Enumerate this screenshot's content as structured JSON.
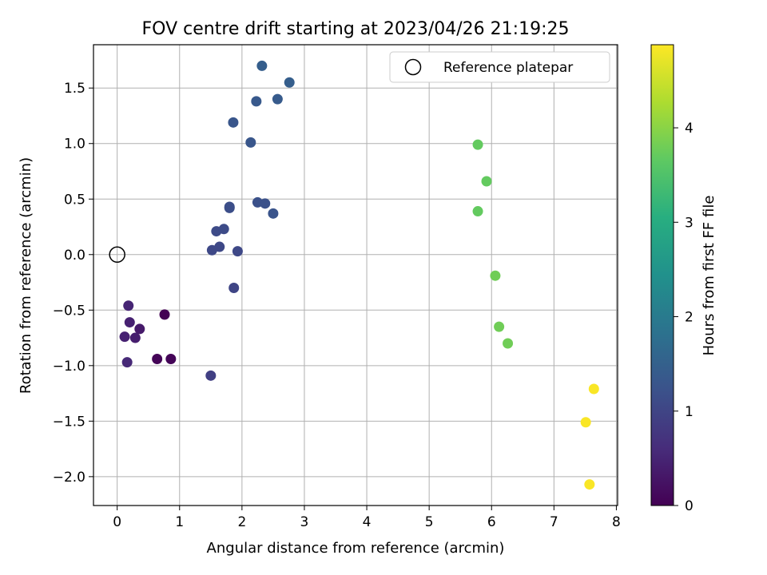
{
  "chart_data": {
    "type": "scatter",
    "title": "FOV centre drift starting at 2023/04/26 21:19:25",
    "xlabel": "Angular distance from reference (arcmin)",
    "ylabel": "Rotation from reference (arcmin)",
    "xlim": [
      -0.38,
      8.02
    ],
    "ylim": [
      -2.26,
      1.89
    ],
    "xticks": [
      0,
      1,
      2,
      3,
      4,
      5,
      6,
      7,
      8
    ],
    "yticks": [
      -2.0,
      -1.5,
      -1.0,
      -0.5,
      0.0,
      0.5,
      1.0,
      1.5
    ],
    "ytick_labels": [
      "−2.0",
      "−1.5",
      "−1.0",
      "−0.5",
      "0.0",
      "0.5",
      "1.0",
      "1.5"
    ],
    "grid": true,
    "legend": {
      "location": "upper right",
      "entries": [
        "Reference platepar"
      ]
    },
    "reference_point": {
      "x": 0,
      "y": 0,
      "label": "Reference platepar"
    },
    "colorbar": {
      "label": "Hours from first FF file",
      "colormap": "viridis",
      "range": [
        0,
        4.88
      ],
      "ticks": [
        0,
        1,
        2,
        3,
        4
      ]
    },
    "points": [
      {
        "x": 0.76,
        "y": -0.54,
        "hours": 0.0
      },
      {
        "x": 0.64,
        "y": -0.94,
        "hours": 0.05
      },
      {
        "x": 0.86,
        "y": -0.94,
        "hours": 0.05
      },
      {
        "x": 0.36,
        "y": -0.67,
        "hours": 0.35
      },
      {
        "x": 0.29,
        "y": -0.75,
        "hours": 0.4
      },
      {
        "x": 0.12,
        "y": -0.74,
        "hours": 0.45
      },
      {
        "x": 0.2,
        "y": -0.61,
        "hours": 0.45
      },
      {
        "x": 0.18,
        "y": -0.46,
        "hours": 0.5
      },
      {
        "x": 0.16,
        "y": -0.97,
        "hours": 0.55
      },
      {
        "x": 1.5,
        "y": -1.09,
        "hours": 0.9
      },
      {
        "x": 1.87,
        "y": -0.3,
        "hours": 1.0
      },
      {
        "x": 1.93,
        "y": 0.03,
        "hours": 1.05
      },
      {
        "x": 1.52,
        "y": 0.04,
        "hours": 1.05
      },
      {
        "x": 1.64,
        "y": 0.07,
        "hours": 1.05
      },
      {
        "x": 1.59,
        "y": 0.21,
        "hours": 1.1
      },
      {
        "x": 1.71,
        "y": 0.23,
        "hours": 1.1
      },
      {
        "x": 1.8,
        "y": 0.42,
        "hours": 1.15
      },
      {
        "x": 1.8,
        "y": 0.43,
        "hours": 1.15
      },
      {
        "x": 2.25,
        "y": 0.47,
        "hours": 1.2
      },
      {
        "x": 2.37,
        "y": 0.46,
        "hours": 1.2
      },
      {
        "x": 2.5,
        "y": 0.37,
        "hours": 1.25
      },
      {
        "x": 2.14,
        "y": 1.01,
        "hours": 1.3
      },
      {
        "x": 1.86,
        "y": 1.19,
        "hours": 1.3
      },
      {
        "x": 2.23,
        "y": 1.38,
        "hours": 1.35
      },
      {
        "x": 2.57,
        "y": 1.4,
        "hours": 1.4
      },
      {
        "x": 2.76,
        "y": 1.55,
        "hours": 1.45
      },
      {
        "x": 2.32,
        "y": 1.7,
        "hours": 1.45
      },
      {
        "x": 5.78,
        "y": 0.99,
        "hours": 3.7
      },
      {
        "x": 5.92,
        "y": 0.66,
        "hours": 3.7
      },
      {
        "x": 5.78,
        "y": 0.39,
        "hours": 3.7
      },
      {
        "x": 6.06,
        "y": -0.19,
        "hours": 3.8
      },
      {
        "x": 6.12,
        "y": -0.65,
        "hours": 3.8
      },
      {
        "x": 6.26,
        "y": -0.8,
        "hours": 3.8
      },
      {
        "x": 7.64,
        "y": -1.21,
        "hours": 4.85
      },
      {
        "x": 7.51,
        "y": -1.51,
        "hours": 4.85
      },
      {
        "x": 7.57,
        "y": -2.07,
        "hours": 4.85
      }
    ]
  }
}
